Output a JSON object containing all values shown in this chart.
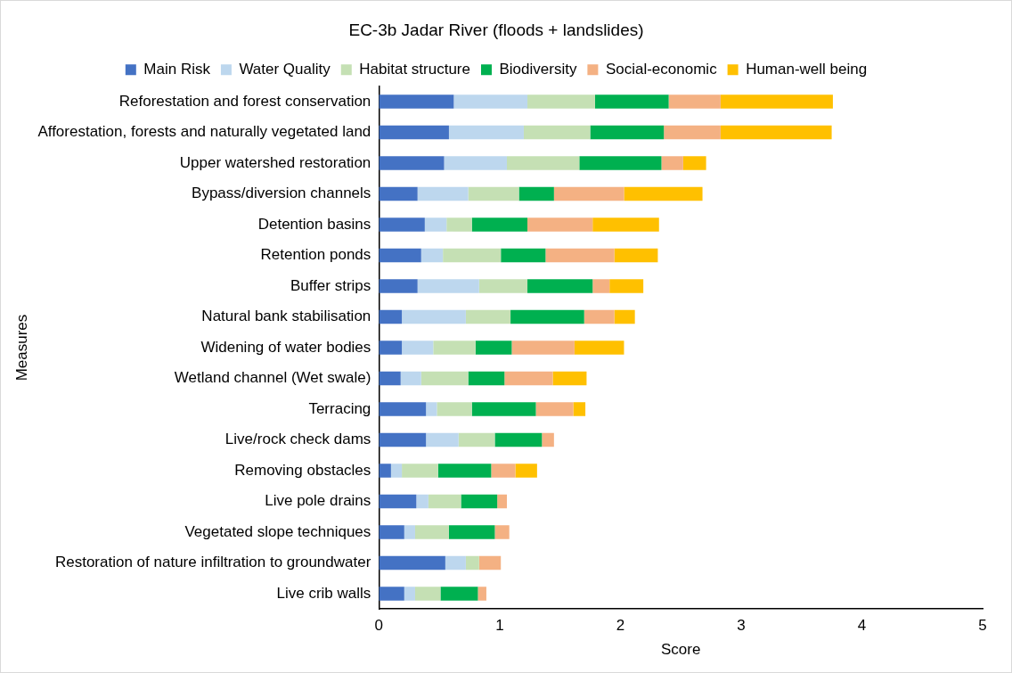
{
  "chart_data": {
    "type": "bar",
    "orientation": "horizontal",
    "stacked": true,
    "title": "EC-3b Jadar River (floods + landslides)",
    "xlabel": "Score",
    "ylabel": "Measures",
    "legend": "top",
    "grid": false,
    "categories": [
      "Reforestation and forest conservation",
      "Afforestation, forests and naturally vegetated land",
      "Upper watershed restoration",
      "Bypass/diversion channels",
      "Detention basins",
      "Retention ponds",
      "Buffer strips",
      "Natural bank stabilisation",
      "Widening of water bodies",
      "Wetland channel (Wet swale)",
      "Terracing",
      "Live/rock check dams",
      "Removing obstacles",
      "Live pole drains",
      "Vegetated slope techniques",
      "Restoration of nature infiltration to groundwater",
      "Live crib walls"
    ],
    "xlim": [
      0,
      5
    ],
    "xticks": [
      0,
      1,
      2,
      3,
      4,
      5
    ],
    "series": [
      {
        "name": "Main Risk",
        "color": "#4472c4",
        "values": [
          0.62,
          0.58,
          0.54,
          0.32,
          0.38,
          0.35,
          0.32,
          0.19,
          0.19,
          0.18,
          0.39,
          0.39,
          0.1,
          0.31,
          0.21,
          0.55,
          0.21
        ]
      },
      {
        "name": "Water Quality",
        "color": "#bdd7ee",
        "values": [
          0.61,
          0.62,
          0.52,
          0.42,
          0.18,
          0.18,
          0.51,
          0.53,
          0.26,
          0.17,
          0.09,
          0.27,
          0.09,
          0.1,
          0.09,
          0.17,
          0.09
        ]
      },
      {
        "name": "Habitat structure",
        "color": "#c5e0b4",
        "values": [
          0.56,
          0.55,
          0.6,
          0.42,
          0.21,
          0.48,
          0.4,
          0.37,
          0.35,
          0.39,
          0.29,
          0.3,
          0.3,
          0.27,
          0.28,
          0.11,
          0.21
        ]
      },
      {
        "name": "Biodiversity",
        "color": "#00b050",
        "values": [
          0.61,
          0.61,
          0.68,
          0.29,
          0.46,
          0.37,
          0.54,
          0.61,
          0.3,
          0.3,
          0.53,
          0.39,
          0.44,
          0.3,
          0.38,
          0,
          0.31
        ]
      },
      {
        "name": "Social-economic",
        "color": "#f4b183",
        "values": [
          0.43,
          0.47,
          0.18,
          0.58,
          0.54,
          0.57,
          0.14,
          0.25,
          0.52,
          0.4,
          0.31,
          0.1,
          0.2,
          0.08,
          0.12,
          0.18,
          0.07
        ]
      },
      {
        "name": "Human-well being",
        "color": "#ffc000",
        "values": [
          0.93,
          0.92,
          0.19,
          0.65,
          0.55,
          0.36,
          0.28,
          0.17,
          0.41,
          0.28,
          0.1,
          0,
          0.18,
          0,
          0,
          0,
          0
        ]
      }
    ]
  }
}
